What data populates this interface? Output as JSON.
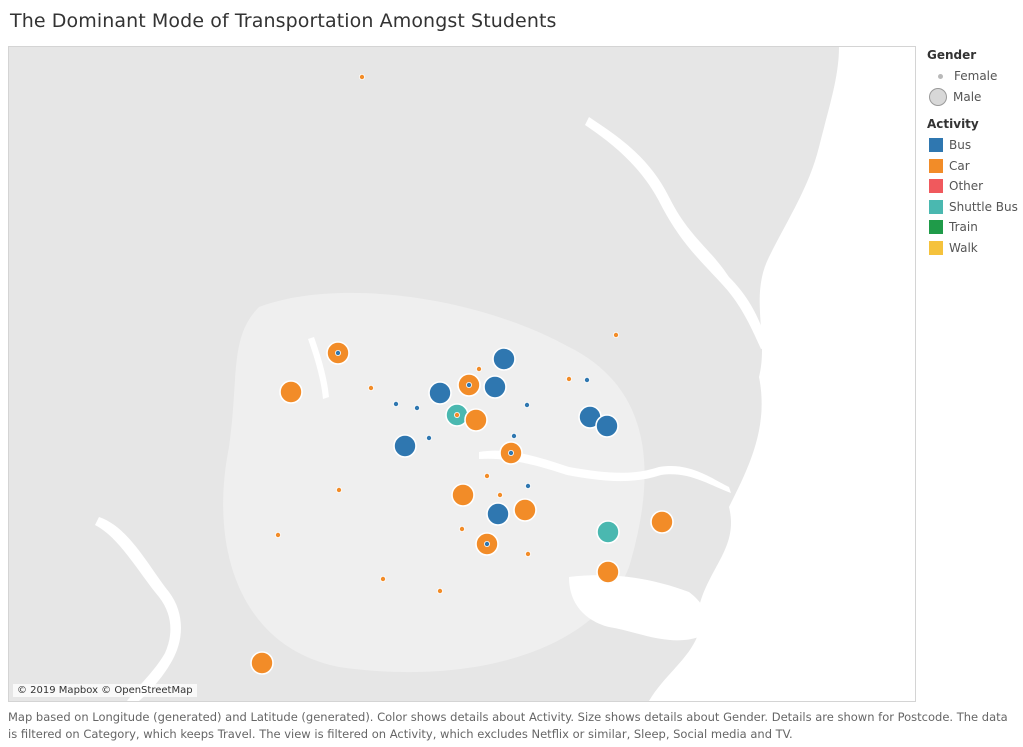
{
  "title": "The Dominant Mode of Transportation Amongst Students",
  "attribution": "© 2019 Mapbox © OpenStreetMap",
  "legend": {
    "gender_title": "Gender",
    "gender_items": [
      {
        "label": "Female",
        "size": "small"
      },
      {
        "label": "Male",
        "size": "large"
      }
    ],
    "activity_title": "Activity",
    "activity_items": [
      {
        "label": "Bus",
        "color": "#2f77b0"
      },
      {
        "label": "Car",
        "color": "#f28c28"
      },
      {
        "label": "Other",
        "color": "#f0595d"
      },
      {
        "label": "Shuttle Bus",
        "color": "#4ab8b0"
      },
      {
        "label": "Train",
        "color": "#1f9b49"
      },
      {
        "label": "Walk",
        "color": "#f5c23c"
      }
    ]
  },
  "caption": "Map based on Longitude (generated) and Latitude (generated).  Color shows details about Activity.  Size shows details about Gender.  Details are shown for Postcode. The data is filtered on Category, which keeps Travel. The view is filtered on Activity, which excludes Netflix or similar, Sleep, Social media and TV.",
  "colors": {
    "Bus": "#2f77b0",
    "Car": "#f28c28",
    "Shuttle Bus": "#4ab8b0"
  }
}
